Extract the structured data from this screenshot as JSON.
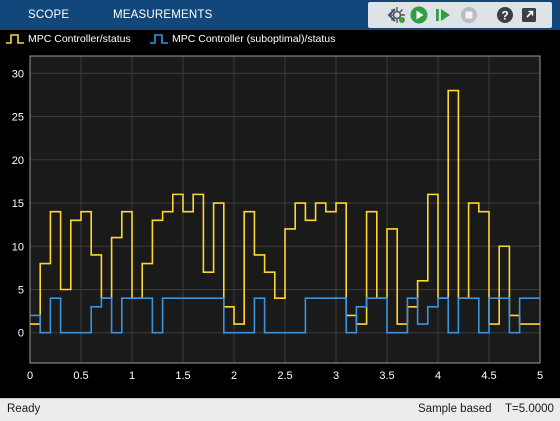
{
  "toolbar": {
    "tabs": [
      {
        "label": "SCOPE"
      },
      {
        "label": "MEASUREMENTS"
      }
    ]
  },
  "legend": [
    {
      "name": "MPC Controller/status",
      "color": "#ffd62f"
    },
    {
      "name": "MPC Controller (suboptimal)/status",
      "color": "#3b93dc"
    }
  ],
  "status": {
    "state": "Ready",
    "mode": "Sample based",
    "time": "T=5.0000"
  },
  "chart_data": {
    "type": "line",
    "style": "stairs",
    "xlim": [
      0,
      5
    ],
    "ylim": [
      -3.5,
      32
    ],
    "xticks": [
      0,
      0.5,
      1,
      1.5,
      2,
      2.5,
      3,
      3.5,
      4,
      4.5,
      5
    ],
    "xtick_labels": [
      "0",
      "0.5",
      "1",
      "1.5",
      "2",
      "2.5",
      "3",
      "3.5",
      "4",
      "4.5",
      "5"
    ],
    "yticks": [
      0,
      5,
      10,
      15,
      20,
      25,
      30
    ],
    "ytick_labels": [
      "0",
      "5",
      "10",
      "15",
      "20",
      "25",
      "30"
    ],
    "grid": true,
    "legend_position": "top",
    "series": [
      {
        "name": "MPC Controller/status",
        "color": "#ffd62f",
        "x": [
          0,
          0.1,
          0.2,
          0.3,
          0.4,
          0.5,
          0.6,
          0.7,
          0.8,
          0.9,
          1.0,
          1.1,
          1.2,
          1.3,
          1.4,
          1.5,
          1.6,
          1.7,
          1.8,
          1.9,
          2.0,
          2.1,
          2.2,
          2.3,
          2.4,
          2.5,
          2.6,
          2.7,
          2.8,
          2.9,
          3.0,
          3.1,
          3.2,
          3.3,
          3.4,
          3.5,
          3.6,
          3.7,
          3.8,
          3.9,
          4.0,
          4.1,
          4.2,
          4.3,
          4.4,
          4.5,
          4.6,
          4.7,
          4.8,
          4.9
        ],
        "y": [
          1,
          8,
          14,
          5,
          13,
          14,
          9,
          4,
          11,
          14,
          4,
          8,
          13,
          14,
          16,
          14,
          16,
          7,
          15,
          3,
          1,
          14,
          9,
          7,
          4,
          12,
          15,
          13,
          15,
          14,
          15,
          2,
          1,
          14,
          4,
          12,
          1,
          3,
          6,
          16,
          4,
          28,
          4,
          15,
          14,
          1,
          10,
          2,
          1,
          1
        ],
        "x_end": 5.0
      },
      {
        "name": "MPC Controller (suboptimal)/status",
        "color": "#3b93dc",
        "x": [
          0,
          0.1,
          0.2,
          0.3,
          0.4,
          0.5,
          0.6,
          0.7,
          0.8,
          0.9,
          1.0,
          1.1,
          1.2,
          1.3,
          1.4,
          1.5,
          1.6,
          1.7,
          1.8,
          1.9,
          2.0,
          2.1,
          2.2,
          2.3,
          2.4,
          2.5,
          2.6,
          2.7,
          2.8,
          2.9,
          3.0,
          3.1,
          3.2,
          3.3,
          3.4,
          3.5,
          3.6,
          3.7,
          3.8,
          3.9,
          4.0,
          4.1,
          4.2,
          4.3,
          4.4,
          4.5,
          4.6,
          4.7,
          4.8,
          4.9
        ],
        "y": [
          2,
          0,
          4,
          0,
          0,
          0,
          3,
          4,
          0,
          4,
          4,
          4,
          0,
          4,
          4,
          4,
          4,
          4,
          4,
          0,
          0,
          0,
          4,
          0,
          0,
          0,
          0,
          4,
          4,
          4,
          4,
          0,
          3,
          4,
          4,
          0,
          0,
          4,
          1,
          3,
          4,
          0,
          4,
          4,
          0,
          4,
          4,
          0,
          4,
          4
        ],
        "x_end": 5.0
      }
    ]
  }
}
